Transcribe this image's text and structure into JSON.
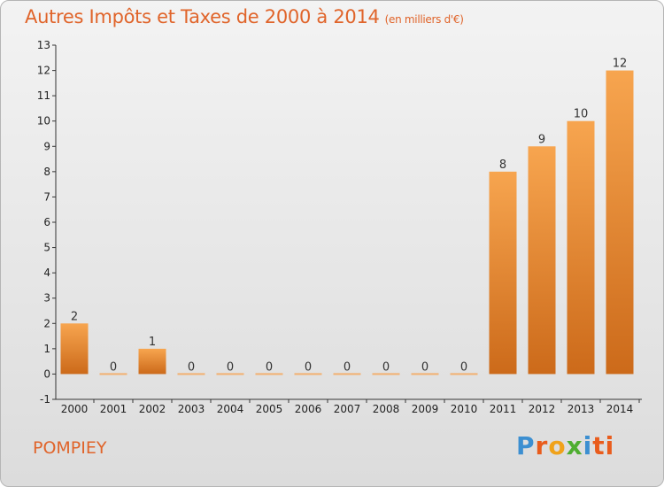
{
  "chart_data": {
    "type": "bar",
    "title": "Autres Impôts et Taxes de 2000 à 2014",
    "subtitle": "(en milliers d'€)",
    "categories": [
      "2000",
      "2001",
      "2002",
      "2003",
      "2004",
      "2005",
      "2006",
      "2007",
      "2008",
      "2009",
      "2010",
      "2011",
      "2012",
      "2013",
      "2014"
    ],
    "values": [
      2,
      0,
      1,
      0,
      0,
      0,
      0,
      0,
      0,
      0,
      0,
      8,
      9,
      10,
      12
    ],
    "ylim": [
      -1,
      13
    ],
    "yticks": [
      -1,
      0,
      1,
      2,
      3,
      4,
      5,
      6,
      7,
      8,
      9,
      10,
      11,
      12,
      13
    ],
    "grid": false,
    "colors": {
      "bar_light": "#f7a54f",
      "bar_dark": "#cc6a1a",
      "zero_bar": "#f2b070"
    }
  },
  "footer": {
    "place": "POMPIEY",
    "logo": [
      "P",
      "r",
      "o",
      "x",
      "i",
      "ti"
    ]
  }
}
